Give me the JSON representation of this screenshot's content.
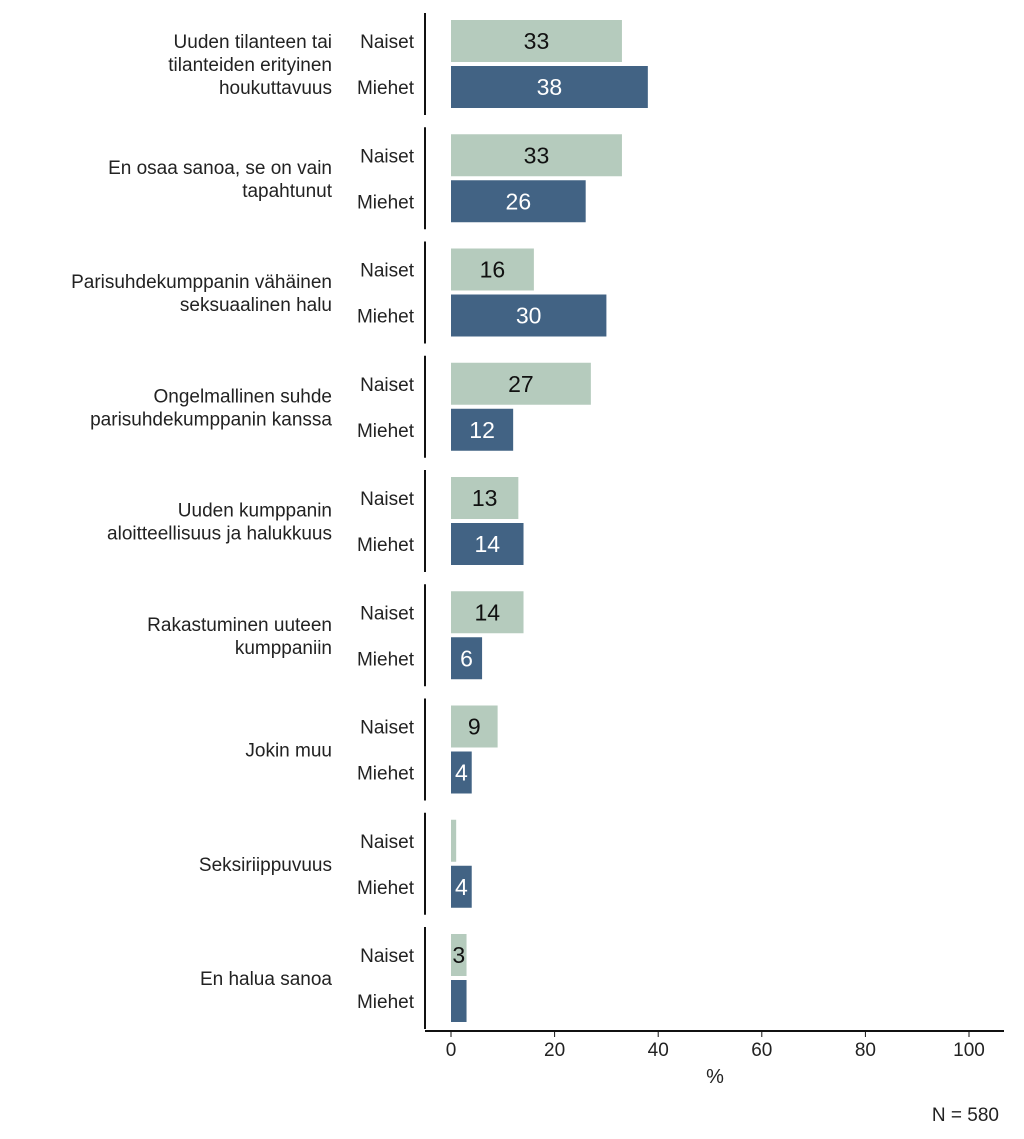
{
  "chart_data": {
    "type": "bar",
    "orientation": "horizontal",
    "xlabel": "%",
    "xlim": [
      0,
      100
    ],
    "xticks": [
      0,
      20,
      40,
      60,
      80,
      100
    ],
    "note": "N = 580",
    "groups": [
      "Naiset",
      "Miehet"
    ],
    "colors": {
      "Naiset": "#b5cbbd",
      "Miehet": "#426384"
    },
    "value_label_colors": {
      "Naiset": "#111111",
      "Miehet": "#ffffff"
    },
    "categories": [
      {
        "label": [
          "Uuden tilanteen tai",
          "tilanteiden erityinen",
          "houkuttavuus"
        ],
        "values": [
          33,
          38
        ],
        "labels": [
          "33",
          "38"
        ]
      },
      {
        "label": [
          "En osaa sanoa, se on vain",
          "tapahtunut"
        ],
        "values": [
          33,
          26
        ],
        "labels": [
          "33",
          "26"
        ]
      },
      {
        "label": [
          "Parisuhdekumppanin vähäinen",
          "seksuaalinen halu"
        ],
        "values": [
          16,
          30
        ],
        "labels": [
          "16",
          "30"
        ]
      },
      {
        "label": [
          "Ongelmallinen suhde",
          "parisuhdekumppanin kanssa"
        ],
        "values": [
          27,
          12
        ],
        "labels": [
          "27",
          "12"
        ]
      },
      {
        "label": [
          "Uuden kumppanin",
          "aloitteellisuus ja halukkuus"
        ],
        "values": [
          13,
          14
        ],
        "labels": [
          "13",
          "14"
        ]
      },
      {
        "label": [
          "Rakastuminen uuteen",
          "kumppaniin"
        ],
        "values": [
          14,
          6
        ],
        "labels": [
          "14",
          "6"
        ]
      },
      {
        "label": [
          "Jokin muu"
        ],
        "values": [
          9,
          4
        ],
        "labels": [
          "9",
          "4"
        ]
      },
      {
        "label": [
          "Seksiriippuvuus"
        ],
        "values": [
          1,
          4
        ],
        "labels": [
          "",
          "4"
        ]
      },
      {
        "label": [
          "En halua sanoa"
        ],
        "values": [
          3,
          3
        ],
        "labels": [
          "3",
          ""
        ]
      }
    ]
  }
}
